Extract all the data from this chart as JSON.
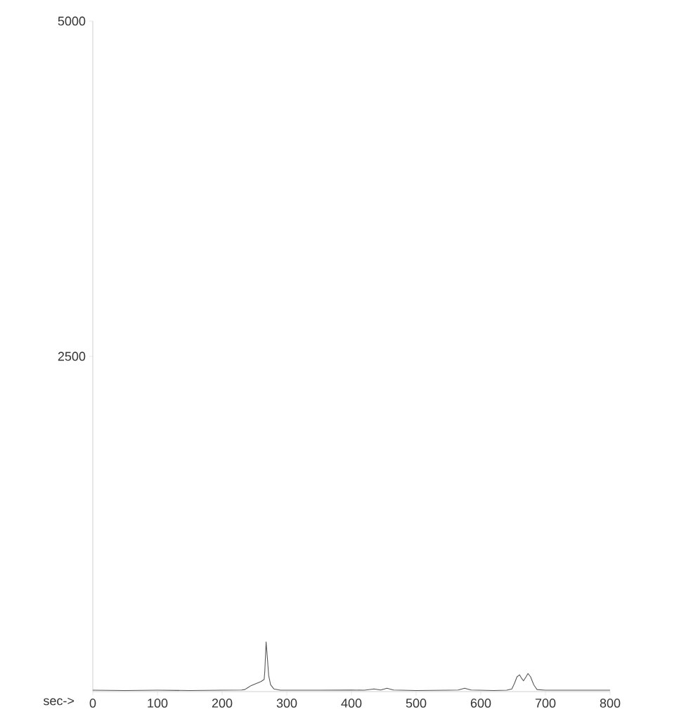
{
  "chart_data": {
    "type": "line",
    "xlabel": "sec->",
    "x": [
      0,
      50,
      100,
      150,
      200,
      230,
      235,
      240,
      245,
      250,
      255,
      260,
      265,
      266,
      268,
      270,
      272,
      275,
      280,
      290,
      300,
      350,
      400,
      420,
      435,
      445,
      455,
      465,
      500,
      550,
      565,
      575,
      585,
      620,
      640,
      648,
      652,
      656,
      660,
      663,
      666,
      670,
      673,
      677,
      682,
      687,
      700,
      750,
      800
    ],
    "series": [
      {
        "color": "#555555",
        "values": [
          10,
          8,
          10,
          8,
          10,
          12,
          15,
          30,
          45,
          55,
          65,
          75,
          90,
          150,
          370,
          250,
          120,
          50,
          20,
          10,
          10,
          10,
          12,
          10,
          20,
          12,
          25,
          12,
          8,
          10,
          12,
          25,
          12,
          8,
          10,
          20,
          60,
          110,
          125,
          100,
          80,
          110,
          135,
          110,
          50,
          15,
          10,
          10,
          10
        ]
      }
    ],
    "xlim": [
      0,
      800
    ],
    "ylim": [
      0,
      5000
    ],
    "xticks": [
      0,
      100,
      200,
      300,
      400,
      500,
      600,
      700,
      800
    ],
    "yticks": [
      2500,
      5000
    ],
    "grid": false,
    "marker": "none",
    "line_style": "solid"
  }
}
